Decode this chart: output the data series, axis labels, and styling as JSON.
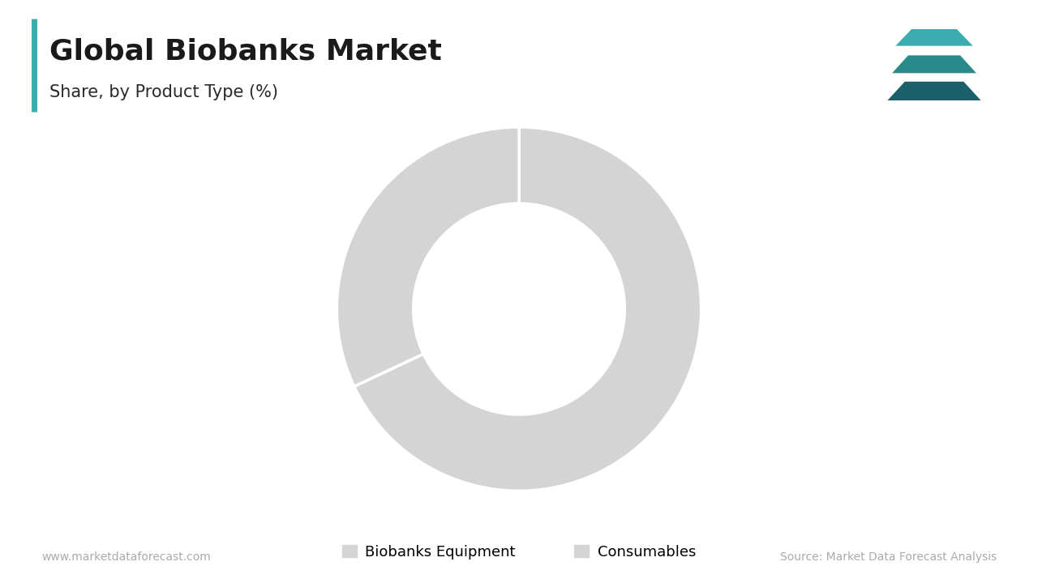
{
  "title": "Global Biobanks Market",
  "subtitle": "Share, by Product Type (%)",
  "segments": [
    "Biobanks Equipment",
    "Consumables"
  ],
  "values": [
    68,
    32
  ],
  "colors": [
    "#d4d4d4",
    "#d4d4d4"
  ],
  "donut_width": 0.42,
  "legend_labels": [
    "Biobanks Equipment",
    "Consumables"
  ],
  "legend_colors": [
    "#d4d4d4",
    "#d4d4d4"
  ],
  "separator_color": "#ffffff",
  "background_color": "#ffffff",
  "title_color": "#1a1a1a",
  "subtitle_color": "#2a2a2a",
  "accent_bar_color": "#3aacad",
  "footer_left": "www.marketdataforecast.com",
  "footer_right": "Source: Market Data Forecast Analysis",
  "footer_color": "#aaaaaa",
  "logo_colors": [
    "#3aacad",
    "#2a8a8a",
    "#1a5f6a"
  ]
}
